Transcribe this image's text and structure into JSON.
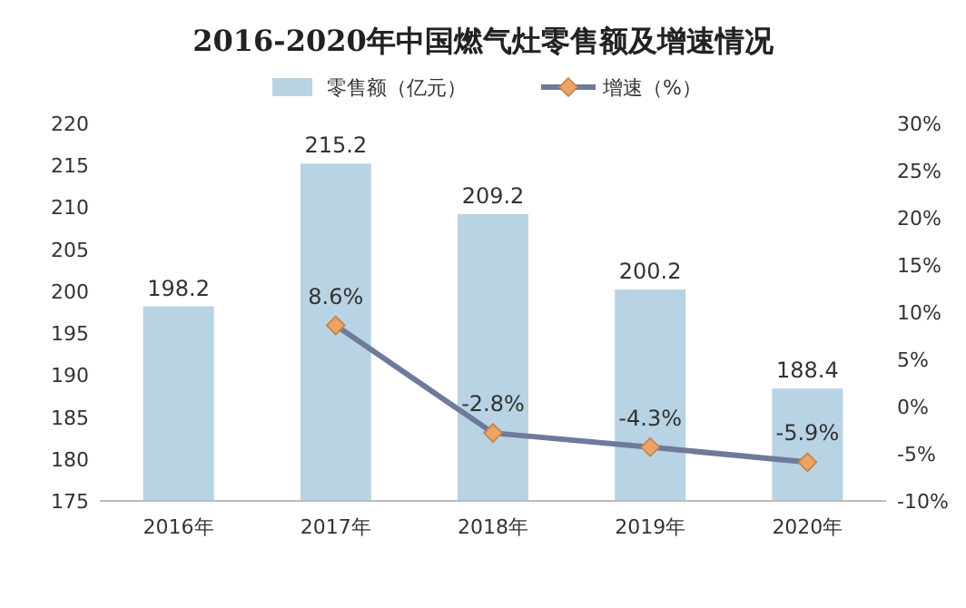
{
  "chart_data": {
    "type": "bar",
    "title": "2016-2020年中国燃气灶零售额及增速情况",
    "categories": [
      "2016年",
      "2017年",
      "2018年",
      "2019年",
      "2020年"
    ],
    "series": [
      {
        "name": "零售额（亿元）",
        "color": "#b8d3e3",
        "values": [
          198.2,
          215.2,
          209.2,
          200.2,
          188.4
        ],
        "value_labels": [
          "198.2",
          "215.2",
          "209.2",
          "200.2",
          "188.4"
        ]
      },
      {
        "name": "增速（%）",
        "type": "line",
        "axis": "y2",
        "color": "#6e7a9a",
        "values": [
          null,
          8.6,
          -2.8,
          -4.3,
          -5.9
        ],
        "value_labels": [
          null,
          "8.6%",
          "-2.8%",
          "-4.3%",
          "-5.9%"
        ]
      }
    ],
    "marker": "diamond",
    "legend": "top",
    "ylim": [
      175,
      220
    ],
    "yticks": [
      175,
      180,
      185,
      190,
      195,
      200,
      205,
      210,
      215,
      220
    ],
    "y2lim": [
      -10,
      30
    ],
    "y2ticks": [
      {
        "value": -10,
        "label": "-10%"
      },
      {
        "value": -5,
        "label": "-5%"
      },
      {
        "value": 0,
        "label": "0%"
      },
      {
        "value": 5,
        "label": "5%"
      },
      {
        "value": 10,
        "label": "10%"
      },
      {
        "value": 15,
        "label": "15%"
      },
      {
        "value": 20,
        "label": "20%"
      },
      {
        "value": 25,
        "label": "25%"
      },
      {
        "value": 30,
        "label": "30%"
      }
    ]
  }
}
